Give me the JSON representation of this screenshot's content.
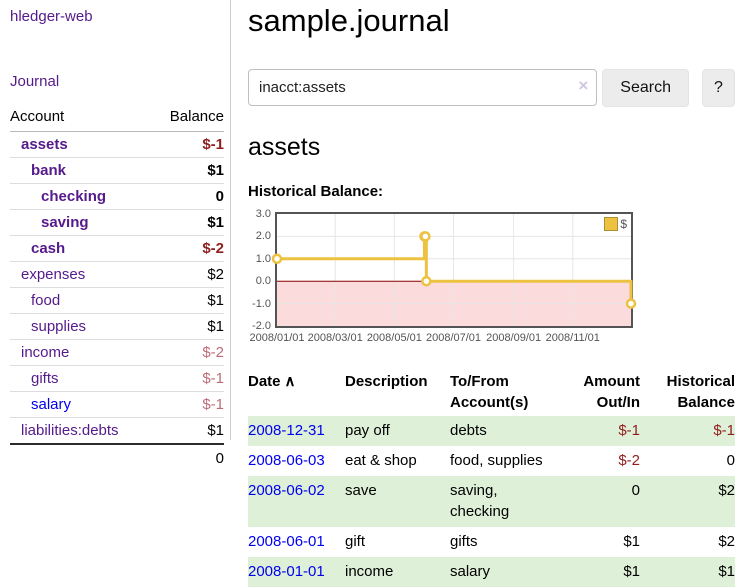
{
  "sidebar": {
    "brand": "hledger-web",
    "journal_link": "Journal",
    "accounts": {
      "col_account": "Account",
      "col_balance": "Balance",
      "rows": [
        {
          "name": "assets",
          "balance": "$-1"
        },
        {
          "name": "bank",
          "balance": "$1"
        },
        {
          "name": "checking",
          "balance": "0"
        },
        {
          "name": "saving",
          "balance": "$1"
        },
        {
          "name": "cash",
          "balance": "$-2"
        },
        {
          "name": "expenses",
          "balance": "$2"
        },
        {
          "name": "food",
          "balance": "$1"
        },
        {
          "name": "supplies",
          "balance": "$1"
        },
        {
          "name": "income",
          "balance": "$-2"
        },
        {
          "name": "gifts",
          "balance": "$-1"
        },
        {
          "name": "salary",
          "balance": "$-1"
        },
        {
          "name": "liabilities:debts",
          "balance": "$1"
        }
      ],
      "total": "0"
    }
  },
  "header": {
    "title": "sample.journal"
  },
  "search": {
    "query": "inacct:assets",
    "clear_icon": "×",
    "search_button": "Search",
    "help_button": "?"
  },
  "register": {
    "account_heading": "assets",
    "chart_title": "Historical Balance:",
    "table": {
      "col_date": "Date",
      "sort_indicator": "∧",
      "col_description": "Description",
      "col_tofrom": "To/From Account(s)",
      "col_amount": "Amount Out/In",
      "col_balance": "Historical Balance",
      "rows": [
        {
          "date": "2008-12-31",
          "description": "pay off",
          "accounts": "debts",
          "amount": "$-1",
          "balance": "$-1"
        },
        {
          "date": "2008-06-03",
          "description": "eat & shop",
          "accounts": "food, supplies",
          "amount": "$-2",
          "balance": "0"
        },
        {
          "date": "2008-06-02",
          "description": "save",
          "accounts": "saving, checking",
          "amount": "0",
          "balance": "$2"
        },
        {
          "date": "2008-06-01",
          "description": "gift",
          "accounts": "gifts",
          "amount": "$1",
          "balance": "$2"
        },
        {
          "date": "2008-01-01",
          "description": "income",
          "accounts": "salary",
          "amount": "$1",
          "balance": "$1"
        }
      ]
    }
  },
  "chart_data": {
    "type": "line",
    "title": "Historical Balance",
    "step": true,
    "x": [
      "2008-01-01",
      "2008-06-01",
      "2008-06-02",
      "2008-06-03",
      "2008-12-31"
    ],
    "series": [
      {
        "name": "$",
        "color": "#edc240",
        "values": [
          1,
          2,
          2,
          0,
          -1
        ]
      }
    ],
    "xlim": [
      "2008-01-01",
      "2008-12-31"
    ],
    "ylim": [
      -2,
      3
    ],
    "y_ticks": [
      3,
      2,
      1,
      0,
      -1,
      -2
    ],
    "y_tick_labels": [
      "3.0",
      "2.0",
      "1.0",
      "0.0",
      "-1.0",
      "-2.0"
    ],
    "x_ticks": [
      {
        "date": "2008-01-01",
        "label": "2008/01/01"
      },
      {
        "date": "2008-03-01",
        "label": "2008/03/01"
      },
      {
        "date": "2008-05-01",
        "label": "2008/05/01"
      },
      {
        "date": "2008-07-01",
        "label": "2008/07/01"
      },
      {
        "date": "2008-09-01",
        "label": "2008/09/01"
      },
      {
        "date": "2008-11-01",
        "label": "2008/11/01"
      }
    ],
    "legend": {
      "entries": [
        "$"
      ],
      "position": "top-right",
      "swatch_color": "#edc240"
    },
    "grid": true,
    "grid_color": "#e6e6e6",
    "zero_line_color": "#8b0000",
    "negative_region_color": "#fbdbdb"
  }
}
